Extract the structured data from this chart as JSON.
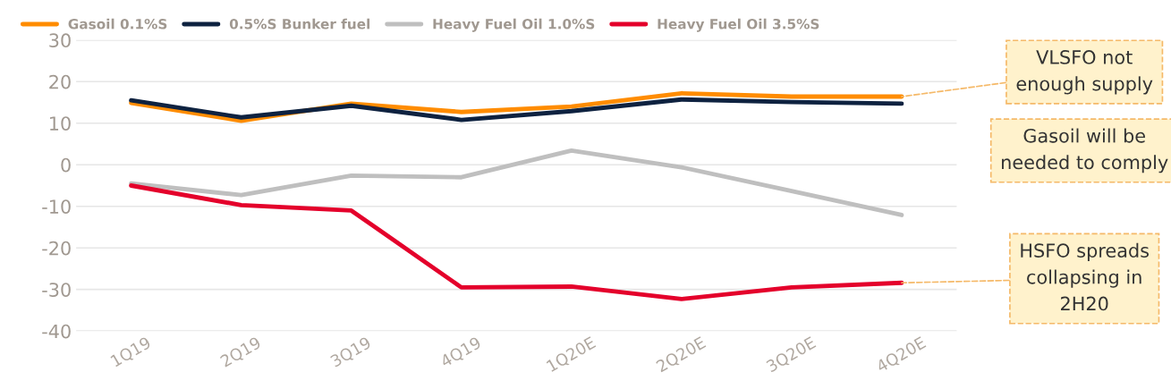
{
  "chart_data": {
    "type": "line",
    "categories": [
      "1Q19",
      "2Q19",
      "3Q19",
      "4Q19",
      "1Q20E",
      "2Q20E",
      "3Q20E",
      "4Q20E"
    ],
    "series": [
      {
        "name": "Gasoil 0.1%S",
        "color": "#ff8c00",
        "values": [
          14.9,
          10.6,
          14.7,
          12.7,
          14.0,
          17.2,
          16.4,
          16.4
        ]
      },
      {
        "name": "0.5%S Bunker fuel",
        "color": "#0e2240",
        "values": [
          15.5,
          11.4,
          14.2,
          10.8,
          12.9,
          15.7,
          15.1,
          14.7
        ]
      },
      {
        "name": "Heavy Fuel Oil 1.0%S",
        "color": "#bfbfbf",
        "values": [
          -4.5,
          -7.3,
          -2.6,
          -3.0,
          3.4,
          -0.6,
          -6.3,
          -12.1
        ]
      },
      {
        "name": "Heavy Fuel Oil 3.5%S",
        "color": "#e4002b",
        "values": [
          -5.0,
          -9.7,
          -11.0,
          -29.5,
          -29.3,
          -32.3,
          -29.5,
          -28.4
        ]
      }
    ],
    "ylim": [
      -40,
      30
    ],
    "yticks": [
      -40,
      -30,
      -20,
      -10,
      0,
      10,
      20,
      30
    ],
    "grid": "y",
    "legend": "top",
    "marker": "none",
    "line_style": "solid",
    "annotations": [
      {
        "text": "VLSFO not\nenough supply",
        "x": "4Q20E",
        "y": 16.4
      },
      "Gasoil will be\nneeded to comply",
      {
        "text": "HSFO spreads\ncollapsing in\n2H20",
        "x": "4Q20E",
        "y": -28.4
      }
    ]
  }
}
